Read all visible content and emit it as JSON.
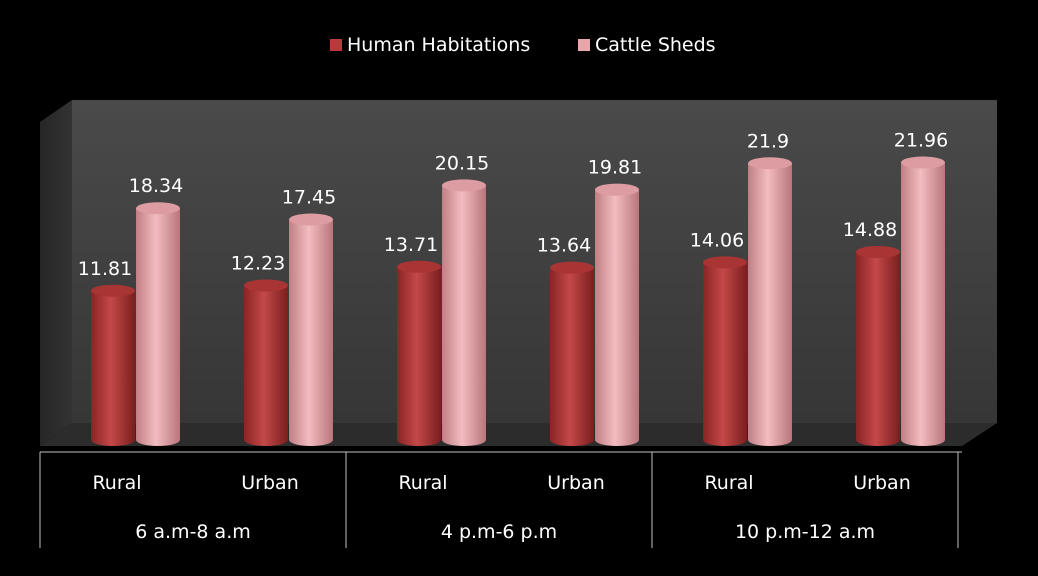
{
  "chart_data": {
    "type": "bar",
    "title": "",
    "xlabel": "",
    "ylabel": "",
    "ylim": [
      0,
      22
    ],
    "grid": false,
    "legend_position": "top",
    "style": "3d-cylinder",
    "categories": [
      "Rural",
      "Urban",
      "Rural",
      "Urban",
      "Rural",
      "Urban"
    ],
    "groups": [
      "6 a.m-8 a.m",
      "4 p.m-6 p.m",
      "10 p.m-12 a.m"
    ],
    "series": [
      {
        "name": "Human Habitations",
        "color": "#b83a3a",
        "values": [
          11.81,
          12.23,
          13.71,
          13.64,
          14.06,
          14.88
        ]
      },
      {
        "name": "Cattle Sheds",
        "color": "#e8a6aa",
        "values": [
          18.34,
          17.45,
          20.15,
          19.81,
          21.9,
          21.96
        ]
      }
    ]
  }
}
